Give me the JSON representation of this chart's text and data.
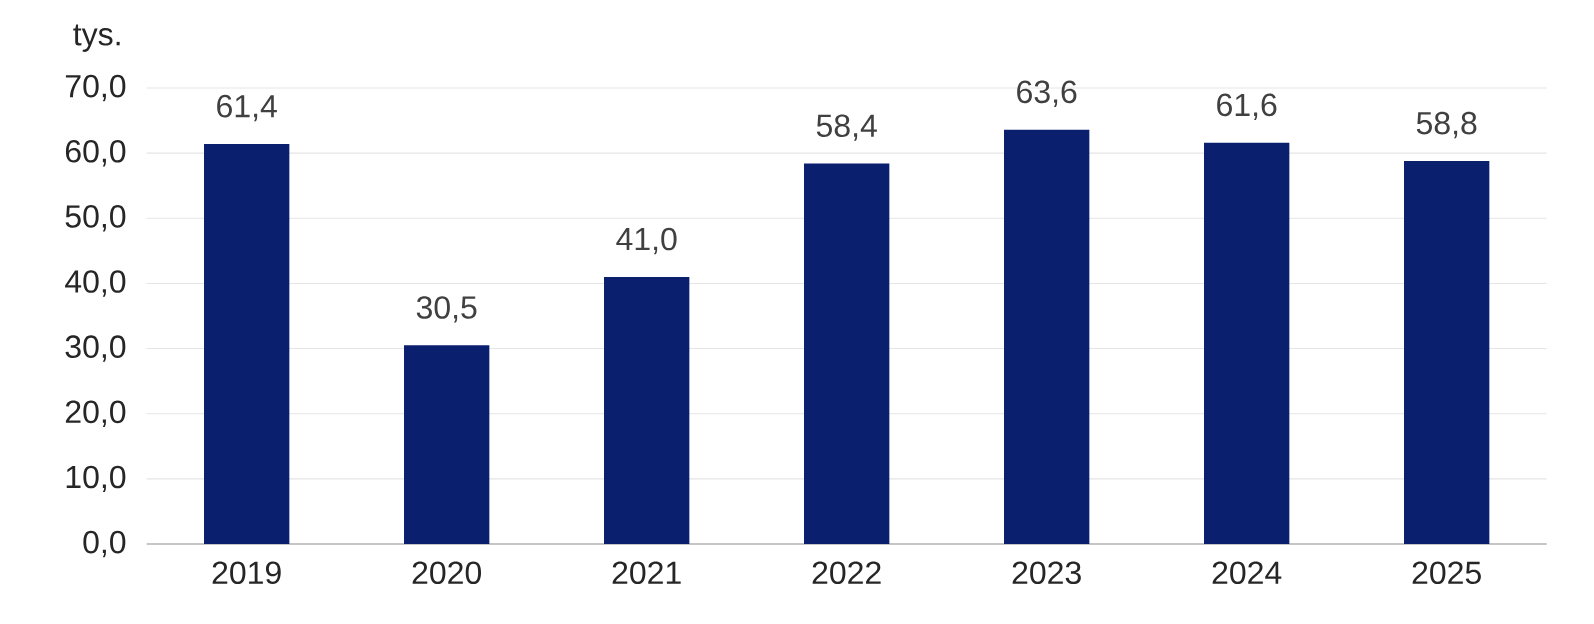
{
  "chart_data": {
    "type": "bar",
    "ylabel": "tys.",
    "categories": [
      "2019",
      "2020",
      "2021",
      "2022",
      "2023",
      "2024",
      "2025"
    ],
    "values": [
      61.4,
      30.5,
      41.0,
      58.4,
      63.6,
      61.6,
      58.8
    ],
    "value_labels": [
      "61,4",
      "30,5",
      "41,0",
      "58,4",
      "63,6",
      "61,6",
      "58,8"
    ],
    "color": "#0a1f6e",
    "ylim": [
      0,
      70
    ],
    "yticks": [
      {
        "value": 0,
        "label": "0,0"
      },
      {
        "value": 10,
        "label": "10,0"
      },
      {
        "value": 20,
        "label": "20,0"
      },
      {
        "value": 30,
        "label": "30,0"
      },
      {
        "value": 40,
        "label": "40,0"
      },
      {
        "value": 50,
        "label": "50,0"
      },
      {
        "value": 60,
        "label": "60,0"
      },
      {
        "value": 70,
        "label": "70,0"
      }
    ],
    "grid": "y"
  }
}
